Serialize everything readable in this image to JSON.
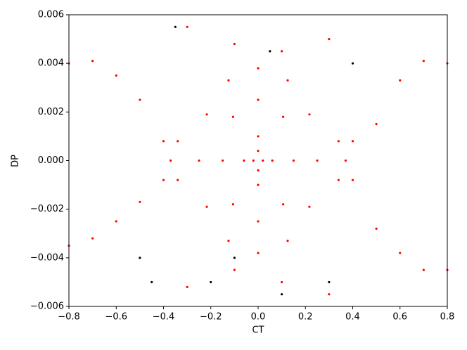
{
  "chart_data": {
    "type": "scatter",
    "x_label": "CT",
    "y_label": "DP",
    "xlim": [
      -0.8,
      0.8
    ],
    "ylim": [
      -0.006,
      0.006
    ],
    "xticks": [
      {
        "value": -0.8,
        "label": "−0.8"
      },
      {
        "value": -0.6,
        "label": "−0.6"
      },
      {
        "value": -0.4,
        "label": "−0.4"
      },
      {
        "value": -0.2,
        "label": "−0.2"
      },
      {
        "value": 0,
        "label": "0.0"
      },
      0.2,
      0.4,
      0.6,
      0.8
    ],
    "yticks": [
      {
        "value": -0.006,
        "label": "−0.006"
      },
      {
        "value": -0.004,
        "label": "−0.004"
      },
      {
        "value": -0.002,
        "label": "−0.002"
      },
      {
        "value": 0,
        "label": "0.000"
      },
      0.002,
      0.004,
      0.006
    ],
    "grid": false,
    "series": [
      {
        "color": "#ff0000",
        "x": [
          0.25,
          0.217,
          0.125,
          0,
          -0.125,
          -0.217,
          -0.25,
          -0.217,
          -0.125,
          0,
          0.125,
          0.217,
          0.15,
          0.106,
          0,
          -0.106,
          -0.15,
          -0.106,
          0,
          0.106,
          0.06,
          0,
          -0.06,
          0,
          0.02,
          0,
          -0.02,
          0,
          -0.37,
          -0.4,
          -0.34,
          -0.4,
          -0.34,
          0.37,
          0.4,
          0.34,
          0.4,
          0.34,
          -0.8,
          -0.7,
          -0.6,
          -0.5,
          -0.8,
          -0.7,
          -0.6,
          -0.5,
          0.8,
          0.7,
          0.6,
          0.5,
          0.8,
          0.7,
          0.6,
          0.5,
          -0.3,
          -0.1,
          0.1,
          0.3,
          -0.3,
          -0.1,
          0.1,
          0.3
        ],
        "y": [
          0,
          0.0019,
          0.0033,
          0.0038,
          0.0033,
          0.0019,
          0,
          -0.0019,
          -0.0033,
          -0.0038,
          -0.0033,
          -0.0019,
          0,
          0.0018,
          0.0025,
          0.0018,
          0,
          -0.0018,
          -0.0025,
          -0.0018,
          0,
          0.001,
          0,
          -0.001,
          0,
          0.0004,
          0,
          -0.0004,
          0,
          0.0008,
          -0.0008,
          -0.0008,
          0.0008,
          0,
          0.0008,
          -0.0008,
          -0.0008,
          0.0008,
          0.004,
          0.0041,
          0.0035,
          0.0025,
          -0.0035,
          -0.0032,
          -0.0025,
          -0.0017,
          -0.0045,
          -0.0045,
          -0.0038,
          -0.0028,
          0.004,
          0.0041,
          0.0033,
          0.0015,
          0.0055,
          0.0048,
          0.0045,
          0.005,
          -0.0052,
          -0.0045,
          -0.005,
          -0.0055
        ]
      },
      {
        "color": "#000000",
        "x": [
          -0.5,
          -0.45,
          -0.1,
          0.05,
          0.4,
          -0.2,
          0.3,
          -0.35,
          0.1
        ],
        "y": [
          -0.004,
          -0.005,
          -0.004,
          0.0045,
          0.004,
          -0.005,
          -0.005,
          0.0055,
          -0.0055
        ]
      }
    ]
  }
}
